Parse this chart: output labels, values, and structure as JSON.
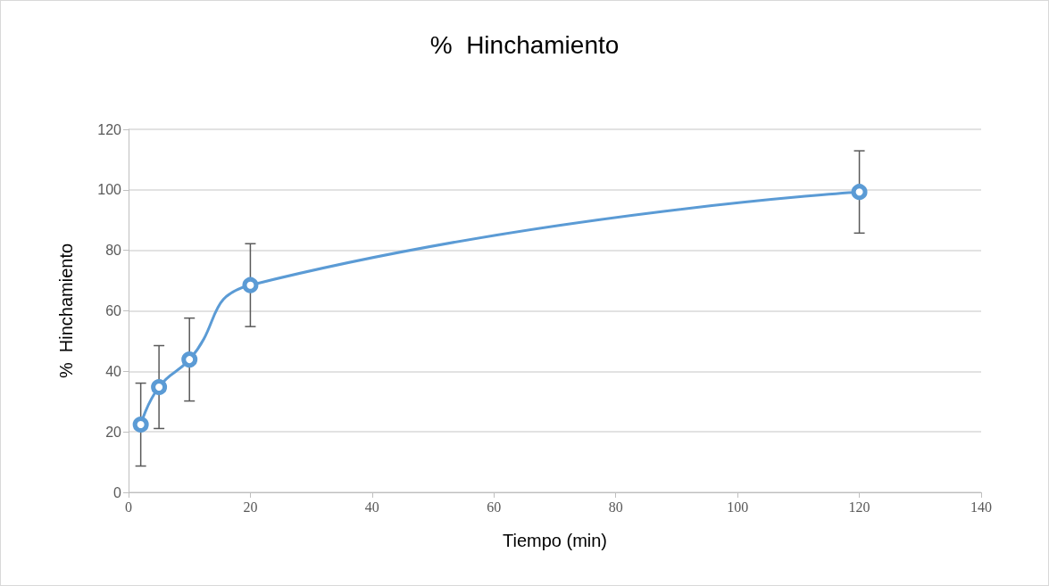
{
  "chart_data": {
    "type": "line",
    "title": "%  Hinchamiento",
    "xlabel": "Tiempo (min)",
    "ylabel": "%  Hinchamiento",
    "x": [
      2,
      5,
      10,
      20,
      120
    ],
    "series": [
      {
        "color": "#5b9bd5",
        "values": [
          22.4,
          34.8,
          43.9,
          68.5,
          99.3
        ],
        "errors": [
          13.7,
          13.7,
          13.7,
          13.7,
          13.6
        ]
      }
    ],
    "xlim": [
      0,
      140
    ],
    "xticks": [
      0,
      20,
      40,
      60,
      80,
      100,
      120,
      140
    ],
    "ylim": [
      0,
      120
    ],
    "yticks": [
      0,
      20,
      40,
      60,
      80,
      100,
      120
    ],
    "grid": "y",
    "marker": "circle",
    "line_style": "solid"
  }
}
